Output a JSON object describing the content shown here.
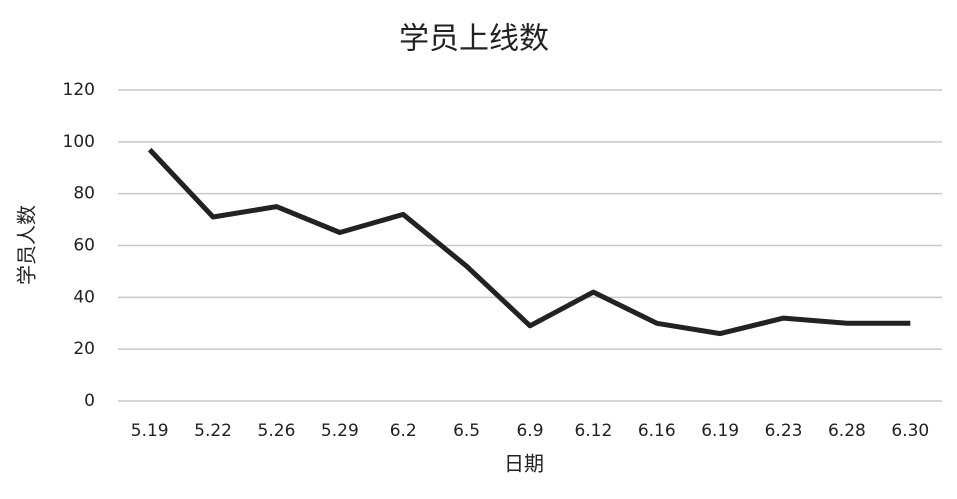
{
  "chart_data": {
    "type": "line",
    "title": "学员上线数",
    "x_label": "日期",
    "y_label": "学员人数",
    "categories": [
      "5.19",
      "5.22",
      "5.26",
      "5.29",
      "6.2",
      "6.5",
      "6.9",
      "6.12",
      "6.16",
      "6.19",
      "6.23",
      "6.28",
      "6.30"
    ],
    "values": [
      97,
      71,
      75,
      65,
      72,
      52,
      29,
      42,
      30,
      26,
      32,
      30,
      30
    ],
    "color": "#222222",
    "ylim": [
      0,
      120
    ],
    "yticks": [
      0,
      20,
      40,
      60,
      80,
      100,
      120
    ],
    "grid": true
  }
}
